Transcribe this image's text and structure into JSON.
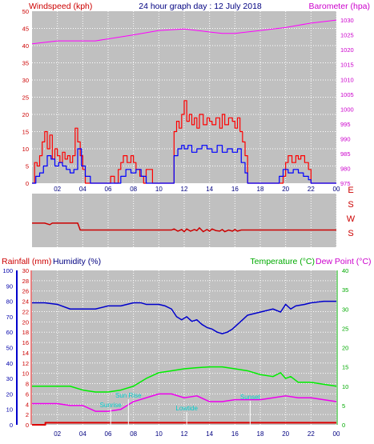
{
  "header": {
    "left": "Windspeed (kph)",
    "center": "24 hour graph day : 12 July 2018",
    "right": "Barometer (hpa)"
  },
  "lower_header": {
    "rain": "Rainfall (mm)",
    "humidity": "Humidity (%)",
    "temperature": "Temperature (°C)",
    "dewpoint": "Dew Point (°C)"
  },
  "colors": {
    "plot_bg": "#c0c0c0",
    "wind": "#ff0000",
    "gust": "#ff0000",
    "avg": "#0000ff",
    "baro": "#ff00ff",
    "direction": "#cc0000",
    "humidity": "#0000cc",
    "temperature": "#00ee00",
    "dewpoint": "#ee00ee",
    "rain": "#dd0000",
    "sun": "#00cccc"
  },
  "chart_data": [
    {
      "type": "line",
      "title": "24 hour graph day : 12 July 2018",
      "xlabel": "",
      "ylabel": "Windspeed (kph)",
      "y2label": "Barometer (hpa)",
      "xlim": [
        0,
        24
      ],
      "ylim": [
        0,
        50
      ],
      "y2lim": [
        975,
        1033
      ],
      "x_ticks": [
        "02",
        "04",
        "06",
        "08",
        "10",
        "12",
        "14",
        "16",
        "18",
        "20",
        "22",
        "00"
      ],
      "y_ticks": [
        "0",
        "5",
        "10",
        "15",
        "20",
        "25",
        "30",
        "35",
        "40",
        "45",
        "50"
      ],
      "y2_ticks": [
        "975",
        "980",
        "985",
        "990",
        "995",
        "1000",
        "1005",
        "1010",
        "1015",
        "1020",
        "1025",
        "1030"
      ],
      "grid": true,
      "series": [
        {
          "key": "gust",
          "axis": "left",
          "x": [
            0,
            0.2,
            0.4,
            0.6,
            0.8,
            1.0,
            1.2,
            1.4,
            1.6,
            1.8,
            2.0,
            2.2,
            2.4,
            2.6,
            2.8,
            3.0,
            3.2,
            3.4,
            3.6,
            3.8,
            4.0,
            4.2,
            4.6,
            5.0,
            5.5,
            6.0,
            6.2,
            6.5,
            6.8,
            7.0,
            7.2,
            7.5,
            7.8,
            8.0,
            8.2,
            8.5,
            8.8,
            9.0,
            9.5,
            10.0,
            10.5,
            11.0,
            11.2,
            11.4,
            11.6,
            11.8,
            12.0,
            12.2,
            12.4,
            12.6,
            12.8,
            13.0,
            13.2,
            13.5,
            13.8,
            14.0,
            14.2,
            14.5,
            14.8,
            15.0,
            15.2,
            15.5,
            15.8,
            16.0,
            16.2,
            16.4,
            16.6,
            16.8,
            17.0,
            17.5,
            18.0,
            18.5,
            19.0,
            19.5,
            19.8,
            20.0,
            20.2,
            20.5,
            20.8,
            21.0,
            21.2,
            21.5,
            21.8,
            22.0,
            22.5,
            23.0,
            23.5,
            24.0
          ],
          "y": [
            0,
            6,
            5,
            8,
            12,
            15,
            10,
            14,
            7,
            10,
            8,
            6,
            9,
            7,
            8,
            6,
            8,
            16,
            12,
            8,
            4,
            0,
            0,
            0,
            0,
            0,
            2,
            0,
            4,
            6,
            8,
            6,
            8,
            6,
            4,
            2,
            0,
            4,
            0,
            0,
            0,
            0,
            15,
            18,
            16,
            20,
            24,
            18,
            20,
            17,
            19,
            16,
            20,
            17,
            19,
            18,
            17,
            19,
            16,
            20,
            17,
            19,
            18,
            16,
            19,
            15,
            12,
            8,
            0,
            0,
            0,
            0,
            0,
            0,
            2,
            6,
            8,
            6,
            8,
            7,
            8,
            6,
            4,
            0,
            0,
            0,
            0,
            0
          ]
        },
        {
          "key": "avg",
          "axis": "left",
          "x": [
            0,
            0.3,
            0.6,
            0.9,
            1.2,
            1.5,
            1.8,
            2.1,
            2.4,
            2.7,
            3.0,
            3.3,
            3.6,
            3.9,
            4.2,
            4.6,
            5.0,
            6.0,
            6.5,
            7.0,
            7.4,
            7.8,
            8.2,
            8.6,
            9.0,
            10.0,
            11.0,
            11.2,
            11.5,
            11.8,
            12.0,
            12.3,
            12.6,
            13.0,
            13.4,
            13.8,
            14.2,
            14.6,
            15.0,
            15.4,
            15.8,
            16.2,
            16.5,
            16.8,
            17.0,
            18.0,
            19.0,
            19.5,
            19.8,
            20.2,
            20.6,
            21.0,
            21.4,
            21.8,
            22.0,
            23.0,
            24.0
          ],
          "y": [
            0,
            2,
            3,
            5,
            8,
            7,
            5,
            6,
            5,
            4,
            3,
            4,
            10,
            5,
            2,
            0,
            0,
            0,
            0,
            2,
            4,
            3,
            4,
            2,
            0,
            0,
            0,
            8,
            10,
            11,
            10,
            11,
            9,
            10,
            11,
            10,
            9,
            11,
            9,
            10,
            9,
            10,
            6,
            3,
            0,
            0,
            0,
            2,
            4,
            3,
            4,
            3,
            2,
            1,
            0,
            0,
            0
          ]
        },
        {
          "key": "baro",
          "axis": "right",
          "x": [
            0,
            2,
            5,
            8,
            10,
            12,
            14,
            15,
            16,
            18,
            20,
            22,
            24
          ],
          "y": [
            1022.0,
            1023.0,
            1023.0,
            1025.0,
            1026.5,
            1027.0,
            1026.0,
            1025.5,
            1025.5,
            1026.5,
            1027.5,
            1029.0,
            1030.0
          ]
        }
      ]
    },
    {
      "type": "line",
      "title": "",
      "ylabel": "",
      "y_ticks": [
        "E",
        "S",
        "W",
        "S"
      ],
      "series": [
        {
          "key": "direction",
          "x": [
            0,
            0.5,
            1.0,
            1.4,
            1.6,
            2.0,
            3.0,
            3.6,
            3.8,
            5.0,
            8.0,
            11.0,
            11.2,
            11.5,
            11.8,
            12.0,
            12.2,
            12.5,
            12.8,
            13.0,
            13.2,
            13.5,
            13.8,
            14.0,
            14.2,
            14.5,
            14.8,
            15.0,
            15.2,
            15.5,
            15.8,
            16.0,
            16.2,
            16.5,
            17.0,
            20.0,
            24.0
          ],
          "y": [
            0.45,
            0.45,
            0.45,
            0.42,
            0.45,
            0.45,
            0.45,
            0.45,
            0.32,
            0.32,
            0.32,
            0.32,
            0.34,
            0.3,
            0.33,
            0.29,
            0.34,
            0.3,
            0.33,
            0.31,
            0.36,
            0.29,
            0.33,
            0.3,
            0.34,
            0.31,
            0.3,
            0.33,
            0.29,
            0.32,
            0.3,
            0.33,
            0.3,
            0.32,
            0.32,
            0.32,
            0.32
          ]
        }
      ]
    },
    {
      "type": "line",
      "title": "",
      "xlabel": "",
      "ylabel": "Rainfall (mm)",
      "y2label": "Temperature (°C)",
      "xlim": [
        0,
        24
      ],
      "ylim": [
        0,
        30
      ],
      "y2lim": [
        0,
        40
      ],
      "y_ticks": [
        "0",
        "2",
        "4",
        "6",
        "8",
        "10",
        "12",
        "14",
        "16",
        "18",
        "20",
        "22",
        "24",
        "26",
        "28",
        "30"
      ],
      "humidity_ticks": [
        "0",
        "10",
        "20",
        "30",
        "40",
        "50",
        "60",
        "70",
        "80",
        "90",
        "100"
      ],
      "y2_ticks": [
        "0",
        "5",
        "10",
        "15",
        "20",
        "25",
        "30",
        "35",
        "40"
      ],
      "x_ticks": [
        "02",
        "04",
        "06",
        "08",
        "10",
        "12",
        "14",
        "16",
        "18",
        "20",
        "22",
        "00"
      ],
      "grid": true,
      "annotations": [
        "Sunrise",
        "Sun Rise",
        "Lowtide",
        "Sunset"
      ],
      "series": [
        {
          "key": "humidity",
          "axis": "humidity",
          "x": [
            0,
            1,
            2,
            3,
            4,
            5,
            6,
            7,
            8,
            8.6,
            9,
            10,
            10.5,
            11,
            11.4,
            11.8,
            12.2,
            12.6,
            13,
            13.4,
            13.8,
            14.2,
            14.6,
            15,
            15.4,
            15.8,
            16.2,
            16.6,
            17,
            18,
            19,
            19.6,
            20,
            20.4,
            20.8,
            21.5,
            22,
            23,
            24
          ],
          "y": [
            79,
            79,
            78,
            75,
            75,
            75,
            77,
            77,
            79,
            79,
            78,
            78,
            77,
            75,
            70,
            68,
            70,
            67,
            68,
            65,
            63,
            62,
            60,
            59,
            60,
            62,
            65,
            68,
            71,
            73,
            75,
            73,
            78,
            75,
            77,
            78,
            79,
            80,
            80
          ]
        },
        {
          "key": "temperature",
          "axis": "right",
          "x": [
            0,
            1,
            2,
            3,
            4,
            5,
            6,
            7,
            8,
            9,
            10,
            11,
            12,
            13,
            14,
            15,
            16,
            17,
            18,
            19,
            19.6,
            20,
            20.4,
            21,
            22,
            23,
            24
          ],
          "y": [
            10,
            10,
            10,
            10,
            9,
            8.5,
            8.5,
            9,
            10,
            12,
            13.5,
            14,
            14.5,
            14.8,
            15,
            15,
            14.5,
            14,
            13,
            12.5,
            13.5,
            12,
            12.5,
            11,
            11,
            10.5,
            10
          ]
        },
        {
          "key": "dewpoint",
          "axis": "right",
          "x": [
            0,
            1,
            2,
            3,
            4,
            5,
            6,
            7,
            8,
            9,
            10,
            11,
            12,
            13,
            14,
            15,
            16,
            17,
            18,
            19,
            20,
            21,
            22,
            23,
            24
          ],
          "y": [
            5.5,
            5.5,
            5.5,
            5,
            5,
            3.5,
            3.5,
            4,
            6,
            7,
            8,
            8,
            7,
            7.5,
            6,
            6,
            6.5,
            6.5,
            6.5,
            7,
            7.5,
            7,
            7,
            6.5,
            6
          ]
        },
        {
          "key": "rain",
          "axis": "left",
          "x": [
            0,
            1,
            1.05,
            24
          ],
          "y": [
            0,
            0,
            0.4,
            0.4
          ]
        }
      ]
    }
  ]
}
